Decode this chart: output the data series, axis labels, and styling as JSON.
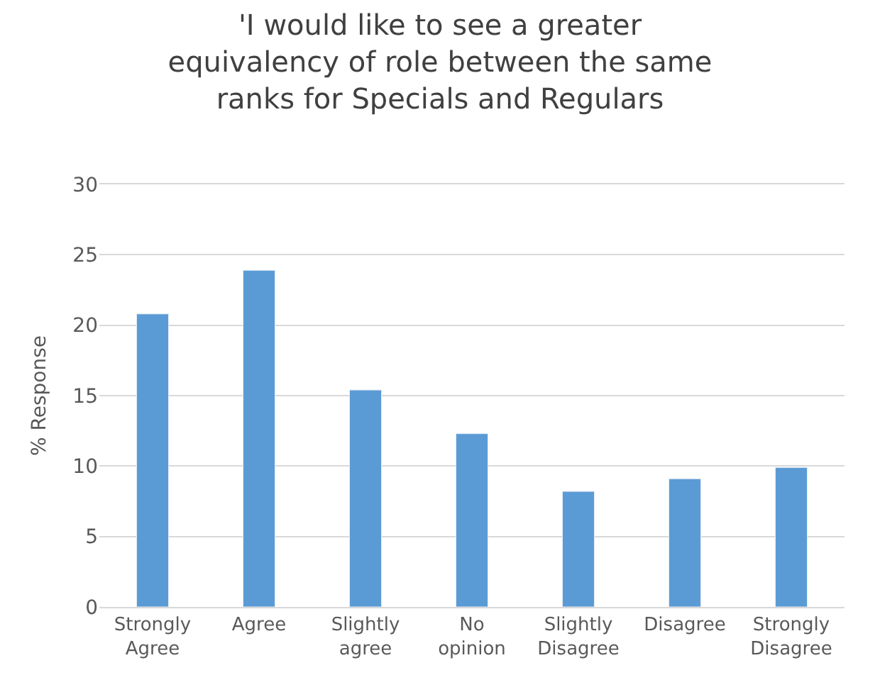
{
  "chart_data": {
    "type": "bar",
    "title": "'I would like to see a greater equivalency of role between the same ranks for Specials and Regulars",
    "ylabel": "% Response",
    "categories": [
      "Strongly Agree",
      "Agree",
      "Slightly agree",
      "No opinion",
      "Slightly Disagree",
      "Disagree",
      "Strongly Disagree"
    ],
    "values": [
      20.8,
      23.9,
      15.4,
      12.3,
      8.2,
      9.1,
      9.9
    ],
    "color": "#5b9bd5",
    "ylim": [
      0,
      30
    ],
    "yticks": [
      0,
      5,
      10,
      15,
      20,
      25,
      30
    ],
    "grid": "y"
  }
}
